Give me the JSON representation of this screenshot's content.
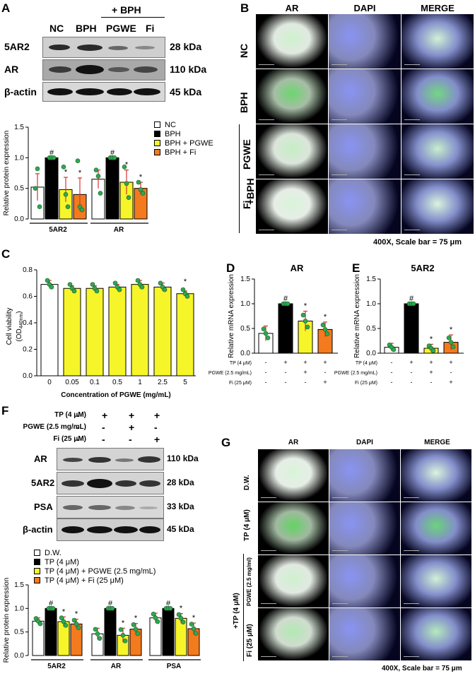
{
  "colors": {
    "nc": "#ffffff",
    "bph": "#000000",
    "pgwe": "#f6f52a",
    "fi": "#f47a1e",
    "dot": "#2fa84f",
    "err": "#d83333",
    "bar_fill": "#f6f52a"
  },
  "panel_a": {
    "letter": "A",
    "group_header": "+ BPH",
    "lanes": [
      "NC",
      "BPH",
      "PGWE",
      "Fi"
    ],
    "blots": [
      {
        "name": "5AR2",
        "kda": "28 kDa"
      },
      {
        "name": "AR",
        "kda": "110 kDa"
      },
      {
        "name": "β-actin",
        "kda": "45 kDa"
      }
    ]
  },
  "panel_b": {
    "letter": "B",
    "columns": [
      "AR",
      "DAPI",
      "MERGE"
    ],
    "rows": [
      "NC",
      "BPH",
      "PGWE",
      "Fi"
    ],
    "group_label": "+BPH",
    "caption": "400X, Scale bar = 75 μm"
  },
  "panel_c": {
    "letter": "C"
  },
  "panel_d": {
    "letter": "D"
  },
  "panel_e": {
    "letter": "E"
  },
  "panel_f": {
    "letter": "F",
    "treatments": [
      {
        "label": "TP (4 μM)",
        "signs": [
          "-",
          "+",
          "+",
          "+"
        ]
      },
      {
        "label": "PGWE (2.5 mg/mL)",
        "signs": [
          "-",
          "-",
          "+",
          "-"
        ]
      },
      {
        "label": "Fi (25 μM)",
        "signs": [
          "-",
          "-",
          "-",
          "+"
        ]
      }
    ],
    "blots": [
      {
        "name": "AR",
        "kda": "110 kDa"
      },
      {
        "name": "5AR2",
        "kda": "28 kDa"
      },
      {
        "name": "PSA",
        "kda": "33 kDa"
      },
      {
        "name": "β-actin",
        "kda": "45 kDa"
      }
    ]
  },
  "panel_g": {
    "letter": "G",
    "columns": [
      "AR",
      "DAPI",
      "MERGE"
    ],
    "rows": [
      "D.W.",
      "TP (4 μM)",
      "PGWE (2.5 mg/ml)",
      "Fi (25 μM)"
    ],
    "group_label": "+TP (4 μM)",
    "caption": "400X, Scale bar = 75 μm"
  },
  "chart_data": [
    {
      "id": "A-bar",
      "type": "bar",
      "ylabel": "Relative protein expression",
      "ylim": [
        0,
        1.5
      ],
      "yticks": [
        "0.0",
        "0.5",
        "1.0",
        "1.5"
      ],
      "categories": [
        "5AR2",
        "AR"
      ],
      "series": [
        {
          "name": "NC",
          "values": [
            0.52,
            0.65
          ],
          "err": [
            0.22,
            0.15
          ],
          "pts": [
            [
              0.5,
              0.82,
              0.2
            ],
            [
              0.8,
              0.7,
              0.42
            ]
          ],
          "marks": [
            "",
            ""
          ]
        },
        {
          "name": "BPH",
          "values": [
            1.0,
            1.0
          ],
          "err": [
            0,
            0
          ],
          "pts": [
            [
              1,
              1,
              1
            ],
            [
              1,
              1,
              1
            ]
          ],
          "marks": [
            "#",
            "#"
          ]
        },
        {
          "name": "BPH + PGWE",
          "values": [
            0.48,
            0.6
          ],
          "err": [
            0.2,
            0.2
          ],
          "pts": [
            [
              0.85,
              0.4,
              0.2
            ],
            [
              0.85,
              0.58,
              0.35
            ]
          ],
          "marks": [
            "*",
            "*"
          ]
        },
        {
          "name": "BPH + Fi",
          "values": [
            0.4,
            0.5
          ],
          "err": [
            0.27,
            0.1
          ],
          "pts": [
            [
              0.95,
              0.2,
              0.15
            ],
            [
              0.6,
              0.48,
              0.42
            ]
          ],
          "marks": [
            "*",
            "*"
          ]
        }
      ]
    },
    {
      "id": "C-bar",
      "type": "bar",
      "ylabel": "Cell viability (OD440nm)",
      "ylabel_line1": "Cell viability",
      "ylabel_line2_prefix": "(OD",
      "ylabel_line2_sub": "440nm",
      "ylabel_line2_suffix": ")",
      "xlabel": "Concentration of PGWE (mg/mL)",
      "ylim": [
        0,
        0.8
      ],
      "yticks": [
        "0.0",
        "0.2",
        "0.4",
        "0.6",
        "0.8"
      ],
      "categories": [
        "0",
        "0.05",
        "0.1",
        "0.5",
        "1",
        "2.5",
        "5"
      ],
      "values": [
        0.69,
        0.66,
        0.66,
        0.67,
        0.69,
        0.67,
        0.62
      ],
      "err": [
        0.03,
        0.02,
        0.02,
        0.02,
        0.03,
        0.03,
        0.02
      ],
      "marks": [
        "",
        "",
        "",
        "",
        "",
        "",
        "*"
      ]
    },
    {
      "id": "D-bar",
      "type": "bar",
      "title": "AR",
      "ylabel": "Relative mRNA expression",
      "ylim": [
        0,
        1.5
      ],
      "yticks": [
        "0.0",
        "0.5",
        "1.0",
        "1.5"
      ],
      "treatments": [
        {
          "label": "TP (4 μM)",
          "signs": [
            "-",
            "+",
            "+",
            "+"
          ]
        },
        {
          "label": "PGWE (2.5 mg/mL)",
          "signs": [
            "-",
            "-",
            "+",
            "-"
          ]
        },
        {
          "label": "Fi (25 μM)",
          "signs": [
            "-",
            "-",
            "-",
            "+"
          ]
        }
      ],
      "values": [
        0.4,
        1.0,
        0.65,
        0.48
      ],
      "err": [
        0.15,
        0,
        0.2,
        0.15
      ],
      "marks": [
        "",
        "#",
        "*",
        "*"
      ]
    },
    {
      "id": "E-bar",
      "type": "bar",
      "title": "5AR2",
      "ylabel": "Relative mRNA expression",
      "ylim": [
        0,
        1.5
      ],
      "yticks": [
        "0.0",
        "0.5",
        "1.0",
        "1.5"
      ],
      "treatments": [
        {
          "label": "TP (4 μM)",
          "signs": [
            "-",
            "+",
            "+",
            "+"
          ]
        },
        {
          "label": "PGWE (2.5 mg/mL)",
          "signs": [
            "-",
            "-",
            "+",
            "-"
          ]
        },
        {
          "label": "Fi (25 μM)",
          "signs": [
            "-",
            "-",
            "-",
            "+"
          ]
        }
      ],
      "values": [
        0.12,
        1.0,
        0.1,
        0.22
      ],
      "err": [
        0.08,
        0,
        0.08,
        0.15
      ],
      "marks": [
        "",
        "#",
        "*",
        "*"
      ]
    },
    {
      "id": "F-bar",
      "type": "bar",
      "ylabel": "Relative protein expression",
      "ylim": [
        0,
        1.5
      ],
      "yticks": [
        "0.0",
        "0.5",
        "1.0",
        "1.5"
      ],
      "categories": [
        "5AR2",
        "AR",
        "PSA"
      ],
      "series": [
        {
          "name": "D.W.",
          "values": [
            0.73,
            0.46,
            0.8
          ],
          "err": [
            0.07,
            0.12,
            0.1
          ]
        },
        {
          "name": "TP (4 μM)",
          "values": [
            1.0,
            1.0,
            1.0
          ],
          "err": [
            0,
            0,
            0
          ],
          "marks": [
            "#",
            "#",
            "#"
          ]
        },
        {
          "name": "TP (4 μM) + PGWE (2.5 mg/mL)",
          "values": [
            0.72,
            0.43,
            0.79
          ],
          "err": [
            0.1,
            0.15,
            0.1
          ],
          "marks": [
            "*",
            "*",
            "*"
          ]
        },
        {
          "name": "TP (4 μM) + Fi (25 μM)",
          "values": [
            0.67,
            0.56,
            0.57
          ],
          "err": [
            0.1,
            0.12,
            0.12
          ],
          "marks": [
            "*",
            "*",
            "*"
          ]
        }
      ]
    }
  ]
}
